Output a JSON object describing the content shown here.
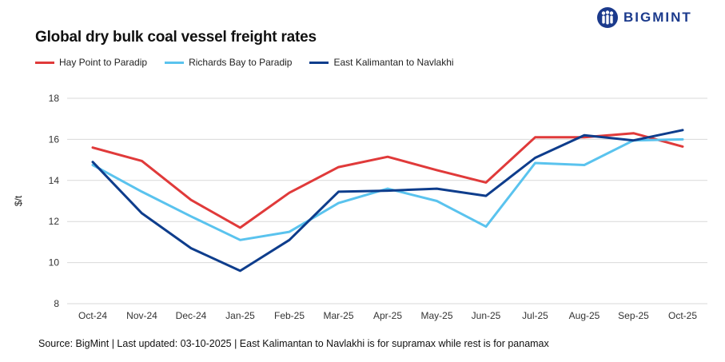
{
  "title": "Global dry bulk coal vessel freight rates",
  "brand": {
    "name": "BIGMINT",
    "color": "#1b3a8c",
    "icon": "bigmint-people-logo-icon"
  },
  "source": "Source: BigMint | Last updated: 03-10-2025 | East Kalimantan to Navlakhi is for supramax while rest is for panamax",
  "chart_data": {
    "type": "line",
    "title": "Global dry bulk coal vessel freight rates",
    "xlabel": "",
    "ylabel": "$/t",
    "ylim": [
      8,
      18
    ],
    "yticks": [
      "8",
      "10",
      "12",
      "14",
      "16",
      "18"
    ],
    "grid": true,
    "legend_position": "top-left",
    "categories": [
      "Oct-24",
      "Nov-24",
      "Dec-24",
      "Jan-25",
      "Feb-25",
      "Mar-25",
      "Apr-25",
      "May-25",
      "Jun-25",
      "Jul-25",
      "Aug-25",
      "Sep-25",
      "Oct-25"
    ],
    "series": [
      {
        "name": "Hay Point to Paradip",
        "color": "#e03a3a",
        "values": [
          15.6,
          14.95,
          13.05,
          11.7,
          13.4,
          14.65,
          15.15,
          14.5,
          13.9,
          16.1,
          16.1,
          16.3,
          15.65
        ]
      },
      {
        "name": "Richards Bay to Paradip",
        "color": "#5ac3ee",
        "values": [
          14.75,
          13.45,
          12.25,
          11.1,
          11.5,
          12.9,
          13.6,
          13.0,
          11.75,
          14.85,
          14.75,
          15.95,
          16.0
        ]
      },
      {
        "name": "East Kalimantan to Navlakhi",
        "color": "#0e3d8c",
        "values": [
          14.9,
          12.4,
          10.7,
          9.6,
          11.1,
          13.45,
          13.5,
          13.6,
          13.25,
          15.1,
          16.2,
          15.95,
          16.45
        ]
      }
    ]
  }
}
